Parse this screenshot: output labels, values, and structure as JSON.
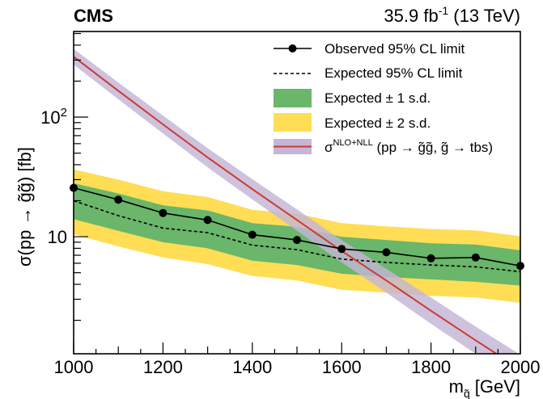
{
  "header": {
    "experiment": "CMS",
    "luminosity": "35.9 fb",
    "lumi_exponent": "-1",
    "energy": " (13 TeV)"
  },
  "axes": {
    "x_title": "m",
    "x_title_sub": "q̃",
    "x_unit": "[GeV]",
    "y_title": "σ(pp → g̃g̃) [fb]"
  },
  "legend": {
    "observed": "Observed 95% CL limit",
    "expected": "Expected 95% CL limit",
    "one_sd": "Expected ± 1 s.d.",
    "two_sd": "Expected ± 2 s.d.",
    "theory_sigma": "σ",
    "theory_sup": "NLO+NLL",
    "theory_process": " (pp → g̃g̃, g̃ → tbs)"
  },
  "colors": {
    "observed": "#000000",
    "expected": "#000000",
    "one_sd": "#6ab66a",
    "two_sd": "#ffdd55",
    "theory_line": "#cc3a33",
    "theory_band": "#c5b5d6"
  },
  "chart_data": {
    "type": "line",
    "xlabel": "m_q̃ [GeV]",
    "ylabel": "σ(pp → g̃g̃) [fb]",
    "xlim": [
      1000,
      2000
    ],
    "ylim": [
      1.05,
      520
    ],
    "y_scale": "log",
    "x_ticks": [
      1000,
      1200,
      1400,
      1600,
      1800,
      2000
    ],
    "y_tick_labels": [
      {
        "value": 10,
        "label": "10"
      },
      {
        "value": 100,
        "label": "10",
        "exp": "2"
      }
    ],
    "legend_position": "top-right",
    "x": [
      1000,
      1100,
      1200,
      1300,
      1400,
      1500,
      1600,
      1700,
      1800,
      1900,
      2000
    ],
    "series": [
      {
        "name": "Observed 95% CL limit",
        "values": [
          25.6,
          20.4,
          15.8,
          13.8,
          10.4,
          9.4,
          7.9,
          7.4,
          6.6,
          6.7,
          5.7
        ]
      },
      {
        "name": "Expected 95% CL limit",
        "values": [
          20.0,
          15.0,
          11.8,
          10.8,
          8.5,
          7.8,
          6.5,
          6.1,
          5.8,
          5.6,
          5.1
        ]
      },
      {
        "name": "Expected ± 1 s.d.",
        "lower": [
          14.0,
          11.2,
          9.0,
          8.0,
          6.3,
          5.8,
          4.9,
          4.6,
          4.4,
          4.2,
          3.9
        ],
        "upper": [
          28.0,
          23.0,
          18.3,
          16.6,
          13.0,
          12.1,
          10.0,
          9.4,
          8.8,
          8.6,
          7.7
        ]
      },
      {
        "name": "Expected ± 2 s.d.",
        "lower": [
          10.5,
          8.3,
          6.7,
          5.9,
          4.7,
          4.3,
          3.6,
          3.4,
          3.2,
          3.1,
          2.8
        ],
        "upper": [
          36.5,
          30.0,
          24.0,
          21.5,
          16.8,
          15.6,
          13.0,
          12.2,
          11.6,
          11.3,
          10.1
        ]
      },
      {
        "name": "σNLO+NLL (pp → g̃g̃, g̃ → tbs)",
        "values": [
          320,
          166,
          87,
          46,
          25,
          13.8,
          7.6,
          4.3,
          2.4,
          1.36,
          0.78
        ],
        "band_lower": [
          275,
          141,
          73,
          38,
          20.5,
          11.2,
          6.1,
          3.4,
          1.87,
          1.05,
          0.59
        ],
        "band_upper": [
          372,
          195,
          103,
          55,
          30.3,
          16.9,
          9.4,
          5.4,
          3.1,
          1.77,
          1.03
        ]
      }
    ]
  }
}
